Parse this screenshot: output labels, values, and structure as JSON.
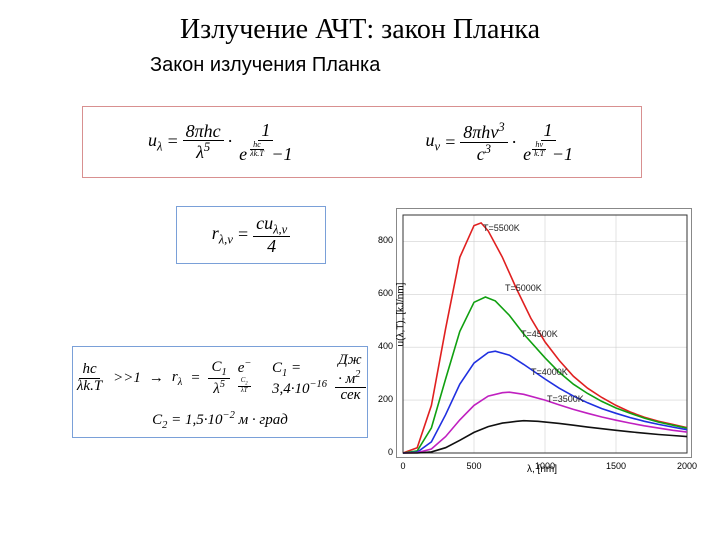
{
  "title": "Излучение АЧТ: закон Планка",
  "subtitle": "Закон излучения Планка",
  "borders": {
    "main_box": "#d89090",
    "r_box": "#7aa0d8",
    "bottom_box": "#7aa0d8"
  },
  "formulas": {
    "u_lambda_lhs": "u",
    "u_lambda_sub": "λ",
    "u_lambda_num1": "8πhc",
    "u_lambda_den1_base": "λ",
    "u_lambda_den1_exp": "5",
    "u_lambda_num2": "1",
    "u_lambda_exp_num": "hc",
    "u_lambda_exp_den": "λk.T",
    "minus1": "−1",
    "u_nu_lhs": "u",
    "u_nu_sub": "ν",
    "u_nu_num1_a": "8πh",
    "u_nu_num1_b": "ν",
    "u_nu_num1_exp": "3",
    "u_nu_den1_base": "c",
    "u_nu_den1_exp": "3",
    "u_nu_exp_num": "hν",
    "u_nu_exp_den": "k.T",
    "r_lhs": "r",
    "r_sub": "λ,ν",
    "r_num": "cu",
    "r_num_sub": "λ,ν",
    "r_den": "4",
    "cond_num": "hc",
    "cond_den": "λk.T",
    "cond_rhs": ">>1",
    "arrow": "→",
    "wien_lhs": "r",
    "wien_sub": "λ",
    "wien_num": "C",
    "wien_num_sub": "1",
    "wien_den_base": "λ",
    "wien_den_exp": "5",
    "wien_exp_lhs": "e",
    "wien_exp_num": "C",
    "wien_exp_num_sub": "2",
    "wien_exp_den": "λT",
    "c1_lhs": "C",
    "c1_sub": "1",
    "c1_val": " = 3,4·10",
    "c1_exp": "−16",
    "c1_unit_num": "Дж · м",
    "c1_unit_num_exp": "2",
    "c1_unit_den": "сек",
    "c2_lhs": "C",
    "c2_sub": "2",
    "c2_val": " = 1,5·10",
    "c2_exp": "−2",
    "c2_unit": " м · град"
  },
  "chart": {
    "type": "line",
    "xlabel": "λ, [nm]",
    "ylabel": "u(λ,T), [kJ/nm]",
    "xlim": [
      0,
      2000
    ],
    "ylim": [
      0,
      900
    ],
    "xticks": [
      0,
      500,
      1000,
      1500,
      2000
    ],
    "yticks": [
      0,
      200,
      400,
      600,
      800
    ],
    "grid_color": "#d0d0d0",
    "axis_color": "#333333",
    "background": "#ffffff",
    "line_width": 1.6,
    "series": [
      {
        "label": "T=5500K",
        "color": "#e02020",
        "label_x": 86,
        "label_y": 14,
        "points": [
          [
            0,
            0
          ],
          [
            100,
            20
          ],
          [
            200,
            180
          ],
          [
            300,
            470
          ],
          [
            400,
            740
          ],
          [
            500,
            860
          ],
          [
            550,
            870
          ],
          [
            600,
            840
          ],
          [
            700,
            740
          ],
          [
            800,
            620
          ],
          [
            900,
            510
          ],
          [
            1000,
            420
          ],
          [
            1100,
            350
          ],
          [
            1200,
            290
          ],
          [
            1300,
            245
          ],
          [
            1400,
            210
          ],
          [
            1500,
            180
          ],
          [
            1600,
            155
          ],
          [
            1700,
            135
          ],
          [
            1800,
            120
          ],
          [
            1900,
            108
          ],
          [
            2000,
            96
          ]
        ]
      },
      {
        "label": "T=5000K",
        "color": "#10a010",
        "label_x": 108,
        "label_y": 74,
        "points": [
          [
            0,
            0
          ],
          [
            100,
            8
          ],
          [
            200,
            95
          ],
          [
            300,
            280
          ],
          [
            400,
            460
          ],
          [
            500,
            570
          ],
          [
            580,
            590
          ],
          [
            650,
            575
          ],
          [
            750,
            520
          ],
          [
            850,
            450
          ],
          [
            1000,
            360
          ],
          [
            1100,
            305
          ],
          [
            1200,
            260
          ],
          [
            1300,
            225
          ],
          [
            1400,
            195
          ],
          [
            1500,
            170
          ],
          [
            1600,
            150
          ],
          [
            1700,
            132
          ],
          [
            1800,
            117
          ],
          [
            1900,
            105
          ],
          [
            2000,
            94
          ]
        ]
      },
      {
        "label": "T=4500K",
        "color": "#2030e0",
        "label_x": 124,
        "label_y": 120,
        "points": [
          [
            0,
            0
          ],
          [
            100,
            3
          ],
          [
            200,
            42
          ],
          [
            300,
            145
          ],
          [
            400,
            260
          ],
          [
            500,
            340
          ],
          [
            600,
            380
          ],
          [
            650,
            385
          ],
          [
            750,
            370
          ],
          [
            850,
            335
          ],
          [
            1000,
            280
          ],
          [
            1100,
            245
          ],
          [
            1200,
            215
          ],
          [
            1300,
            190
          ],
          [
            1400,
            168
          ],
          [
            1500,
            150
          ],
          [
            1600,
            134
          ],
          [
            1700,
            120
          ],
          [
            1800,
            108
          ],
          [
            1900,
            98
          ],
          [
            2000,
            88
          ]
        ]
      },
      {
        "label": "T=4000K",
        "color": "#c020c0",
        "label_x": 134,
        "label_y": 158,
        "points": [
          [
            0,
            0
          ],
          [
            100,
            1
          ],
          [
            200,
            15
          ],
          [
            300,
            62
          ],
          [
            400,
            125
          ],
          [
            500,
            180
          ],
          [
            600,
            215
          ],
          [
            700,
            228
          ],
          [
            750,
            230
          ],
          [
            850,
            222
          ],
          [
            1000,
            200
          ],
          [
            1100,
            182
          ],
          [
            1200,
            165
          ],
          [
            1300,
            150
          ],
          [
            1400,
            136
          ],
          [
            1500,
            124
          ],
          [
            1600,
            113
          ],
          [
            1700,
            103
          ],
          [
            1800,
            94
          ],
          [
            1900,
            86
          ],
          [
            2000,
            79
          ]
        ]
      },
      {
        "label": "T=3500K",
        "color": "#101010",
        "label_x": 150,
        "label_y": 185,
        "points": [
          [
            0,
            0
          ],
          [
            100,
            0
          ],
          [
            200,
            4
          ],
          [
            300,
            20
          ],
          [
            400,
            48
          ],
          [
            500,
            78
          ],
          [
            600,
            100
          ],
          [
            700,
            113
          ],
          [
            800,
            120
          ],
          [
            850,
            122
          ],
          [
            950,
            120
          ],
          [
            1100,
            112
          ],
          [
            1200,
            105
          ],
          [
            1300,
            98
          ],
          [
            1400,
            92
          ],
          [
            1500,
            86
          ],
          [
            1600,
            80
          ],
          [
            1700,
            75
          ],
          [
            1800,
            70
          ],
          [
            1900,
            66
          ],
          [
            2000,
            62
          ]
        ]
      }
    ]
  }
}
